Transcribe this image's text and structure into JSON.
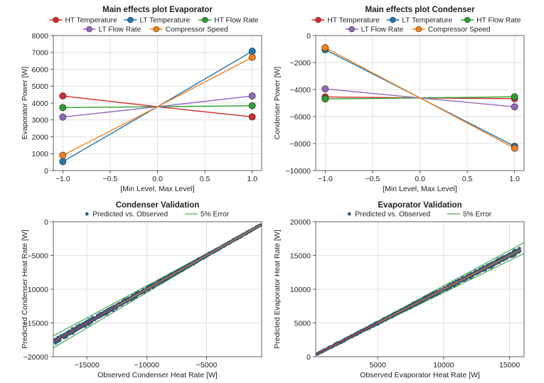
{
  "chart_data": [
    {
      "type": "line",
      "title": "Main effects plot Evaporator",
      "xlabel": "[Min Level, Max Level]",
      "ylabel": "Evaporator Power [W]",
      "xlim": [
        -1.1,
        1.1
      ],
      "ylim": [
        0,
        8000
      ],
      "xticks": [
        -1.0,
        -0.5,
        0.0,
        0.5,
        1.0
      ],
      "xtick_labels": [
        "−1.0",
        "−0.5",
        "0.0",
        "0.5",
        "1.0"
      ],
      "yticks": [
        0,
        1000,
        2000,
        3000,
        4000,
        5000,
        6000,
        7000,
        8000
      ],
      "ytick_labels": [
        "0",
        "1000",
        "2000",
        "3000",
        "4000",
        "5000",
        "6000",
        "7000",
        "8000"
      ],
      "grid": true,
      "legend_position": "top",
      "x": [
        -1.0,
        0.0,
        1.0
      ],
      "series": [
        {
          "name": "HT Temperature",
          "color": "#d62728",
          "values": [
            4420,
            3780,
            3180
          ]
        },
        {
          "name": "LT Temperature",
          "color": "#1f77b4",
          "values": [
            530,
            3780,
            7070
          ]
        },
        {
          "name": "HT Flow Rate",
          "color": "#2ca02c",
          "values": [
            3730,
            3780,
            3840
          ]
        },
        {
          "name": "LT Flow Rate",
          "color": "#9467bd",
          "values": [
            3170,
            3780,
            4420
          ]
        },
        {
          "name": "Compressor Speed",
          "color": "#ff7f0e",
          "values": [
            900,
            3780,
            6710
          ]
        }
      ]
    },
    {
      "type": "line",
      "title": "Main effects plot Condenser",
      "xlabel": "[Min Level, Max Level]",
      "ylabel": "Condenser Power [W]",
      "xlim": [
        -1.1,
        1.1
      ],
      "ylim": [
        -10000,
        0
      ],
      "xticks": [
        -1.0,
        -0.5,
        0.0,
        0.5,
        1.0
      ],
      "xtick_labels": [
        "−1.0",
        "−0.5",
        "0.0",
        "0.5",
        "1.0"
      ],
      "yticks": [
        -10000,
        -8000,
        -6000,
        -4000,
        -2000,
        0
      ],
      "ytick_labels": [
        "−10000",
        "−8000",
        "−6000",
        "−4000",
        "−2000",
        "0"
      ],
      "grid": true,
      "legend_position": "top",
      "x": [
        -1.0,
        0.0,
        1.0
      ],
      "series": [
        {
          "name": "HT Temperature",
          "color": "#d62728",
          "values": [
            -4550,
            -4620,
            -4680
          ]
        },
        {
          "name": "LT Temperature",
          "color": "#1f77b4",
          "values": [
            -1050,
            -4620,
            -8200
          ]
        },
        {
          "name": "HT Flow Rate",
          "color": "#2ca02c",
          "values": [
            -4700,
            -4620,
            -4540
          ]
        },
        {
          "name": "LT Flow Rate",
          "color": "#9467bd",
          "values": [
            -3950,
            -4620,
            -5280
          ]
        },
        {
          "name": "Compressor Speed",
          "color": "#ff7f0e",
          "values": [
            -900,
            -4620,
            -8350
          ]
        }
      ]
    },
    {
      "type": "scatter",
      "title": "Condenser Validation",
      "xlabel": "Observed Condenser Heat Rate [W]",
      "ylabel": "Predicted Condenser Heat Rate [W]",
      "xlim": [
        -17800,
        -400
      ],
      "ylim": [
        -20000,
        0
      ],
      "xticks": [
        -15000,
        -10000,
        -5000
      ],
      "xtick_labels": [
        "−15000",
        "−10000",
        "−5000"
      ],
      "yticks": [
        -20000,
        -15000,
        -10000,
        -5000,
        0
      ],
      "ytick_labels": [
        "−20000",
        "−15000",
        "−10000",
        "−5000",
        "0"
      ],
      "grid": true,
      "legend_position": "top",
      "point_range": [
        -17700,
        -500
      ],
      "legend": [
        "Predicted vs. Observed",
        "5% Error"
      ],
      "series": [
        {
          "name": "Predicted vs. Observed",
          "color": "#2b5d7a",
          "kind": "points"
        },
        {
          "name": "5% Error",
          "color": "#55aa55",
          "kind": "band",
          "error_pct": 5
        },
        {
          "name": "Ideal",
          "color": "#c0394b",
          "kind": "identity"
        }
      ]
    },
    {
      "type": "scatter",
      "title": "Evaporator Validation",
      "xlabel": "Observed Evaporator Heat Rate [W]",
      "ylabel": "Predicted Evaporator Heat Rate [W]",
      "xlim": [
        300,
        16100
      ],
      "ylim": [
        0,
        20000
      ],
      "xticks": [
        5000,
        10000,
        15000
      ],
      "xtick_labels": [
        "5000",
        "10000",
        "15000"
      ],
      "yticks": [
        0,
        5000,
        10000,
        15000,
        20000
      ],
      "ytick_labels": [
        "0",
        "5000",
        "10000",
        "15000",
        "20000"
      ],
      "grid": true,
      "legend_position": "top",
      "point_range": [
        400,
        15800
      ],
      "legend": [
        "Predicted vs. Observed",
        "5% Error"
      ],
      "series": [
        {
          "name": "Predicted vs. Observed",
          "color": "#2b5d7a",
          "kind": "points"
        },
        {
          "name": "5% Error",
          "color": "#55aa55",
          "kind": "band",
          "error_pct": 5
        },
        {
          "name": "Ideal",
          "color": "#c0394b",
          "kind": "identity"
        }
      ]
    }
  ]
}
